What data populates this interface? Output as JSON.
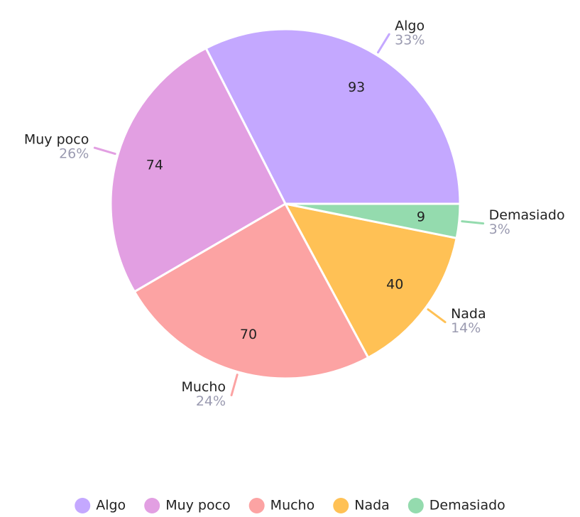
{
  "chart_data": {
    "type": "pie",
    "categories": [
      "Algo",
      "Muy poco",
      "Mucho",
      "Nada",
      "Demasiado"
    ],
    "values": [
      93,
      74,
      70,
      40,
      9
    ],
    "percent_labels": [
      "33%",
      "26%",
      "24%",
      "14%",
      "3%"
    ],
    "colors": [
      "#c4a8ff",
      "#e29fe2",
      "#fca3a3",
      "#ffc155",
      "#94dbae"
    ],
    "legend": "bottom"
  }
}
